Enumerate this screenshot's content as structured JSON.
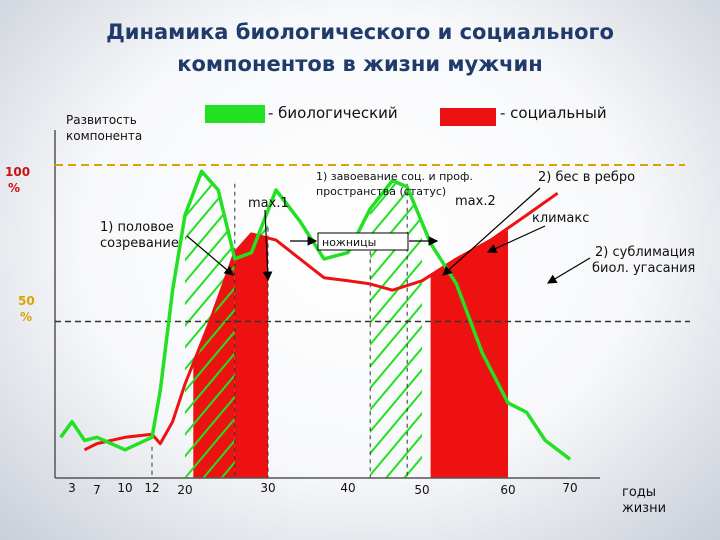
{
  "title_line1": "Динамика биологического и социального",
  "title_line2": "компонентов в жизни мужчин",
  "legend": {
    "bio_label": "- биологический",
    "soc_label": "- социальный",
    "bio_color": "#22e022",
    "soc_color": "#ee1111"
  },
  "chart_data": {
    "type": "line",
    "ylabel": "Развитость компонента",
    "xlabel": "годы жизни",
    "xlabel_lines": [
      "годы",
      "жизни"
    ],
    "ylabel_lines": [
      "Развитость",
      "компонента"
    ],
    "y_ticks": [
      {
        "label_lines": [
          "100",
          "%"
        ],
        "value": 100
      },
      {
        "label_lines": [
          "50",
          "%"
        ],
        "value": 50
      }
    ],
    "x_ticks": [
      "3",
      "7",
      "10",
      "12",
      "20",
      "30",
      "40",
      "50",
      "60",
      "70"
    ],
    "ylim": [
      0,
      100
    ],
    "series": [
      {
        "name": "биологический",
        "color": "#22e022",
        "points": [
          [
            1,
            13
          ],
          [
            3,
            18
          ],
          [
            5,
            12
          ],
          [
            7,
            13
          ],
          [
            10,
            9
          ],
          [
            12,
            13
          ],
          [
            14,
            28
          ],
          [
            17,
            60
          ],
          [
            20,
            84
          ],
          [
            22,
            98
          ],
          [
            24,
            92
          ],
          [
            26,
            70
          ],
          [
            28,
            72
          ],
          [
            31,
            92
          ],
          [
            34,
            82
          ],
          [
            37,
            70
          ],
          [
            40,
            72
          ],
          [
            43,
            86
          ],
          [
            46,
            95
          ],
          [
            48,
            93
          ],
          [
            51,
            75
          ],
          [
            54,
            62
          ],
          [
            57,
            40
          ],
          [
            60,
            24
          ],
          [
            63,
            21
          ],
          [
            66,
            12
          ],
          [
            70,
            6
          ]
        ]
      },
      {
        "name": "социальный",
        "color": "#ee1111",
        "points": [
          [
            5,
            9
          ],
          [
            7,
            11
          ],
          [
            10,
            13
          ],
          [
            12,
            14
          ],
          [
            14,
            11
          ],
          [
            17,
            18
          ],
          [
            20,
            30
          ],
          [
            23,
            50
          ],
          [
            26,
            72
          ],
          [
            28,
            78
          ],
          [
            31,
            76
          ],
          [
            34,
            70
          ],
          [
            37,
            64
          ],
          [
            40,
            63
          ],
          [
            43,
            62
          ],
          [
            46,
            60
          ],
          [
            50,
            63
          ],
          [
            54,
            70
          ],
          [
            58,
            76
          ],
          [
            63,
            84
          ],
          [
            68,
            91
          ]
        ]
      }
    ],
    "shaded_regions": [
      {
        "x_from": 21,
        "x_to": 26,
        "fill": "red-hatched"
      },
      {
        "x_from": 26,
        "x_to": 30,
        "fill": "red-solid"
      },
      {
        "x_from": 43,
        "x_to": 50,
        "fill": "green-hatched"
      },
      {
        "x_from": 51,
        "x_to": 60,
        "fill": "red-solid"
      }
    ],
    "hatched_under_bio": {
      "x_from": 20,
      "x_to": 30
    }
  },
  "annotations": {
    "max1": "max.1",
    "max2": "max.2",
    "puberty_lines": [
      "1) половое",
      "созревание"
    ],
    "status_lines": [
      "1) завоевание соц. и проф.",
      "пространства (статус)"
    ],
    "scissors": "ножницы",
    "midlife": "2) бес в ребро",
    "climax": "климакс",
    "sublimation_lines": [
      "2) сублимация",
      "биол. угасания"
    ]
  }
}
